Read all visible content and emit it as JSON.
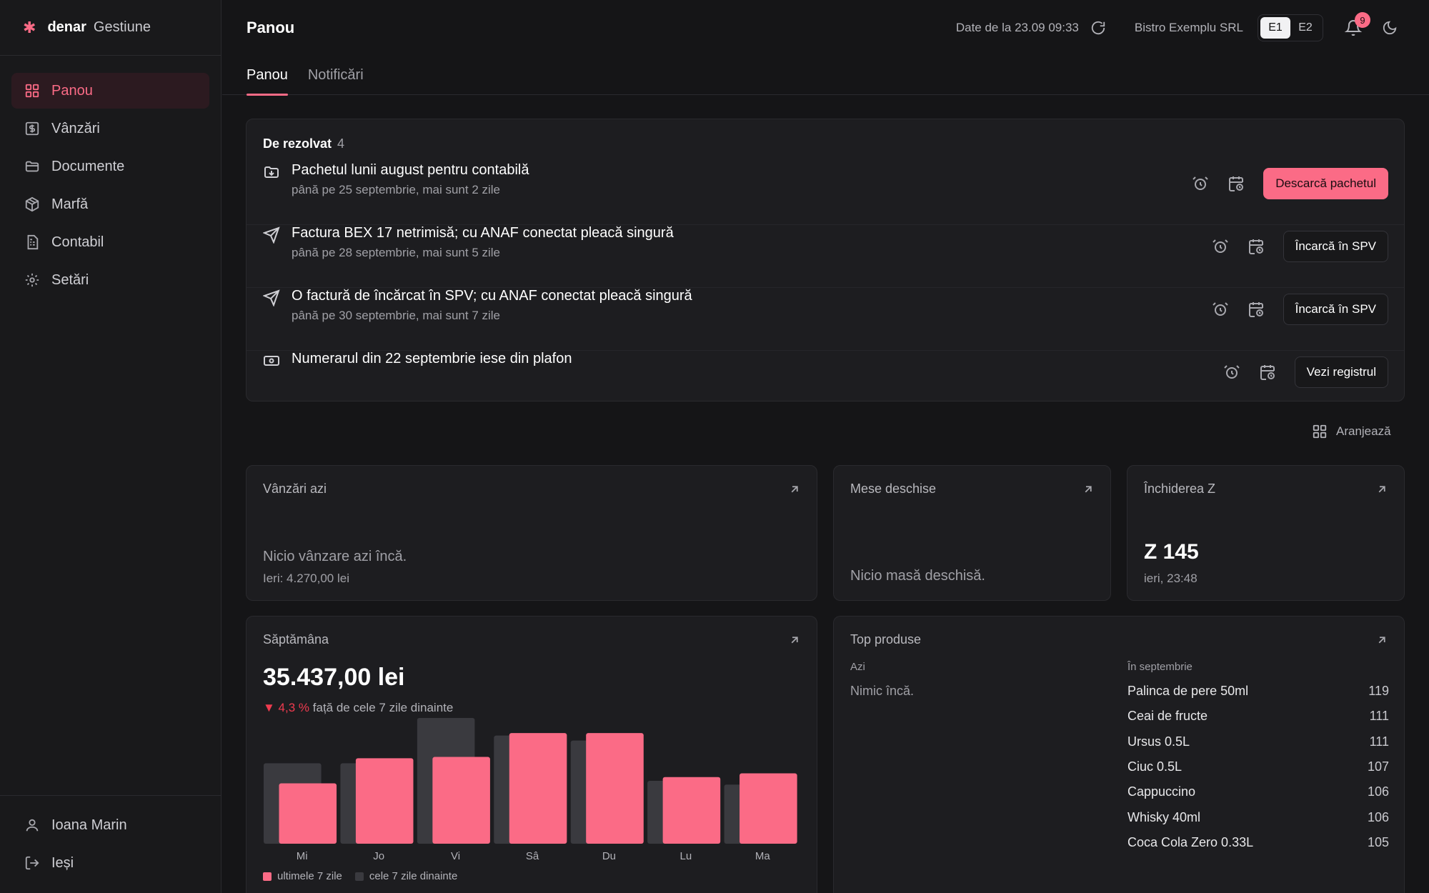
{
  "brand": {
    "mark": "✱",
    "name": "denar",
    "module": "Gestiune"
  },
  "sidebar": {
    "items": [
      {
        "label": "Panou",
        "icon": "dashboard-icon"
      },
      {
        "label": "Vânzări",
        "icon": "dollar-icon"
      },
      {
        "label": "Documente",
        "icon": "folder-icon"
      },
      {
        "label": "Marfă",
        "icon": "package-icon"
      },
      {
        "label": "Contabil",
        "icon": "ledger-icon"
      },
      {
        "label": "Setări",
        "icon": "gear-icon"
      }
    ],
    "user": "Ioana Marin",
    "logout": "Ieși"
  },
  "header": {
    "title": "Panou",
    "data_date": "Date de la 23.09 09:33",
    "company": "Bistro Exemplu SRL",
    "entities": [
      "E1",
      "E2"
    ],
    "notifications_count": "9"
  },
  "tabs": [
    "Panou",
    "Notificări"
  ],
  "todo": {
    "title": "De rezolvat",
    "count": "4",
    "tasks": [
      {
        "title": "Pachetul lunii august pentru contabilă",
        "subtitle": "până pe 25 septembrie, mai sunt 2 zile",
        "action": "Descarcă pachetul",
        "icon": "download-tray-icon"
      },
      {
        "title": "Factura BEX 17 netrimisă; cu ANAF conectat pleacă singură",
        "subtitle": "până pe 28 septembrie, mai sunt 5 zile",
        "action": "Încarcă în SPV",
        "icon": "send-icon"
      },
      {
        "title": "O factură de încărcat în SPV; cu ANAF conectat pleacă singură",
        "subtitle": "până pe 30 septembrie, mai sunt 7 zile",
        "action": "Încarcă în SPV",
        "icon": "send-icon"
      },
      {
        "title": "Numerarul din 22 septembrie iese din plafon",
        "subtitle": "",
        "action": "Vezi registrul",
        "icon": "banknote-icon"
      }
    ]
  },
  "arrange_label": "Aranjează",
  "cards": {
    "sales_today": {
      "title": "Vânzări azi",
      "empty": "Nicio vânzare azi încă.",
      "yesterday": "Ieri: 4.270,00 lei"
    },
    "open_tables": {
      "title": "Mese deschise",
      "empty": "Nicio masă deschisă."
    },
    "z_close": {
      "title": "Închiderea Z",
      "value": "Z 145",
      "when": "ieri, 23:48"
    },
    "week": {
      "title": "Săptămâna",
      "total": "35.437,00 lei",
      "change": "▼ 4,3 %",
      "change_text": "față de cele 7 zile dinainte",
      "legend_current": "ultimele 7 zile",
      "legend_previous": "cele 7 zile dinainte"
    },
    "top_products": {
      "title": "Top produse",
      "today_label": "Azi",
      "today_empty": "Nimic încă.",
      "month_label": "În septembrie",
      "items": [
        {
          "name": "Palinca de pere 50ml",
          "qty": "119"
        },
        {
          "name": "Ceai de fructe",
          "qty": "111"
        },
        {
          "name": "Ursus 0.5L",
          "qty": "111"
        },
        {
          "name": "Ciuc 0.5L",
          "qty": "107"
        },
        {
          "name": "Cappuccino",
          "qty": "106"
        },
        {
          "name": "Whisky 40ml",
          "qty": "106"
        },
        {
          "name": "Coca Cola Zero 0.33L",
          "qty": "105"
        }
      ]
    }
  },
  "colors": {
    "accent": "#fb6b86",
    "previous": "#3a3a3f",
    "negative": "#ef3b4f"
  },
  "chart_data": {
    "type": "bar",
    "categories": [
      "Mi",
      "Jo",
      "Vi",
      "Sâ",
      "Du",
      "Lu",
      "Ma"
    ],
    "series": [
      {
        "name": "ultimele 7 zile",
        "values": [
          0.48,
          0.68,
          0.69,
          0.88,
          0.88,
          0.53,
          0.56
        ]
      },
      {
        "name": "cele 7 zile dinainte",
        "values": [
          0.64,
          0.64,
          1.0,
          0.86,
          0.82,
          0.5,
          0.47
        ]
      }
    ],
    "title": "Săptămâna",
    "xlabel": "",
    "ylabel": "",
    "ylim": [
      0,
      1
    ],
    "grid": false,
    "legend": "bottom-left"
  }
}
